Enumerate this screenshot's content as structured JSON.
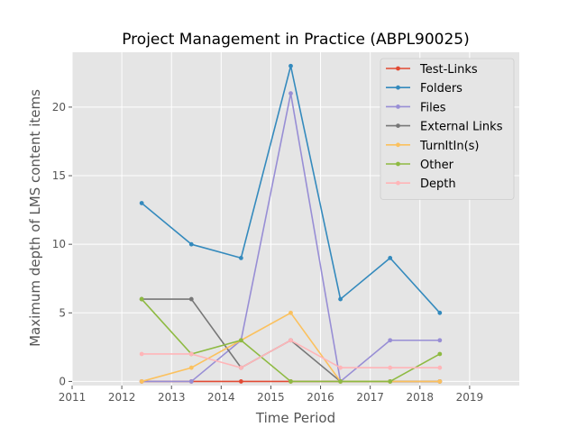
{
  "chart_data": {
    "type": "line",
    "title": "Project Management in Practice (ABPL90025)",
    "xlabel": "Time Period",
    "ylabel": "Maximum depth of LMS content items",
    "xlim": [
      2011,
      2020
    ],
    "ylim": [
      -0.3,
      24
    ],
    "x_ticks": [
      2011,
      2012,
      2013,
      2014,
      2015,
      2016,
      2017,
      2018,
      2019
    ],
    "y_ticks": [
      0,
      5,
      10,
      15,
      20
    ],
    "grid": true,
    "legend_position": "top-right",
    "x": [
      2012.4,
      2013.4,
      2014.4,
      2015.4,
      2016.4,
      2017.4,
      2018.4
    ],
    "series": [
      {
        "name": "Test-Links",
        "color": "#e24a33",
        "values": [
          0,
          0,
          0,
          0,
          0,
          0,
          0
        ]
      },
      {
        "name": "Folders",
        "color": "#348abd",
        "values": [
          13,
          10,
          9,
          23,
          6,
          9,
          5
        ]
      },
      {
        "name": "Files",
        "color": "#988ed5",
        "values": [
          0,
          0,
          3,
          21,
          0,
          3,
          3
        ]
      },
      {
        "name": "External Links",
        "color": "#777777",
        "values": [
          6,
          6,
          1,
          3,
          0,
          0,
          0
        ]
      },
      {
        "name": "TurnItIn(s)",
        "color": "#fbc15e",
        "values": [
          0,
          1,
          3,
          5,
          0,
          0,
          0
        ]
      },
      {
        "name": "Other",
        "color": "#8eba42",
        "values": [
          6,
          2,
          3,
          0,
          0,
          0,
          2
        ]
      },
      {
        "name": "Depth",
        "color": "#ffb5b8",
        "values": [
          2,
          2,
          1,
          3,
          1,
          1,
          1
        ]
      }
    ]
  }
}
